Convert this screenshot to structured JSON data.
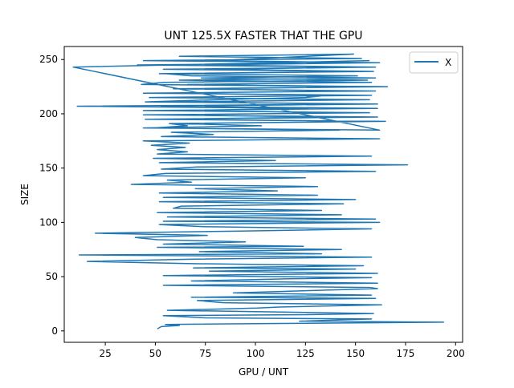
{
  "chart_data": {
    "type": "line",
    "title": "UNT 125.5X FASTER THAT THE GPU",
    "xlabel": "GPU / UNT",
    "ylabel": "SIZE",
    "xlim": [
      4.5,
      203.5
    ],
    "ylim": [
      -10.5,
      262
    ],
    "xticks": [
      25,
      50,
      75,
      100,
      125,
      150,
      175,
      200
    ],
    "yticks": [
      0,
      50,
      100,
      150,
      200,
      250
    ],
    "xtick_labels": [
      "25",
      "50",
      "75",
      "100",
      "125",
      "150",
      "175",
      "200"
    ],
    "ytick_labels": [
      "0",
      "50",
      "100",
      "150",
      "200",
      "250"
    ],
    "grid": false,
    "legend": {
      "position": "top-right",
      "entries": [
        "X"
      ]
    },
    "series": [
      {
        "name": "X",
        "color": "#1f77b4",
        "x": [
          51,
          53,
          62,
          55,
          194,
          122,
          158,
          75,
          54,
          126,
          159,
          56,
          101,
          112,
          163,
          84,
          71,
          160,
          68,
          158,
          89,
          124,
          161,
          157,
          54,
          161,
          68,
          117,
          158,
          54,
          161,
          77,
          150,
          69,
          154,
          66,
          16,
          67,
          158,
          12,
          133,
          72,
          143,
          51,
          124,
          54,
          95,
          51,
          40,
          76,
          20,
          93,
          158,
          74,
          52,
          162,
          54,
          160,
          56,
          143,
          51,
          133,
          59,
          63,
          144,
          52,
          150,
          54,
          131,
          52,
          111,
          70,
          131,
          38,
          68,
          56,
          125,
          44,
          55,
          160,
          53,
          71,
          176,
          52,
          110,
          49,
          158,
          51,
          66,
          51,
          65,
          48,
          67,
          44,
          162,
          53,
          79,
          58,
          142,
          49,
          66,
          57,
          165,
          52,
          138,
          54,
          148,
          62,
          126,
          11,
          159,
          45,
          80,
          125,
          137,
          52,
          150,
          70,
          166,
          43,
          54,
          156,
          73,
          151,
          52,
          153,
          54,
          160,
          70,
          160,
          44,
          153,
          62,
          149,
          79,
          162,
          41,
          158,
          79,
          159,
          55,
          68,
          160,
          62,
          158,
          66,
          160,
          59,
          160,
          44,
          158,
          47,
          157,
          57,
          161,
          53,
          161,
          44,
          157,
          44,
          161,
          45,
          161,
          60,
          103,
          44,
          162,
          9,
          157
        ],
        "y": [
          2,
          4,
          5,
          6,
          8,
          9,
          11,
          12,
          14,
          15,
          16,
          19,
          21,
          22,
          24,
          26,
          28,
          30,
          31,
          33,
          35,
          37,
          39,
          40,
          42,
          44,
          46,
          48,
          49,
          51,
          53,
          55,
          57,
          58,
          60,
          62,
          64,
          66,
          68,
          70,
          71,
          73,
          75,
          77,
          78,
          80,
          82,
          84,
          86,
          88,
          90,
          92,
          94,
          96,
          98,
          100,
          101,
          103,
          105,
          107,
          109,
          111,
          113,
          115,
          117,
          119,
          121,
          123,
          125,
          127,
          129,
          131,
          133,
          135,
          137,
          139,
          141,
          143,
          145,
          147,
          149,
          151,
          153,
          155,
          157,
          159,
          161,
          163,
          165,
          167,
          169,
          171,
          173,
          175,
          177,
          179,
          181,
          183,
          185,
          187,
          189,
          191,
          193,
          195,
          197,
          199,
          201,
          203,
          205,
          207,
          209,
          211,
          213,
          215,
          217,
          219,
          221,
          223,
          225,
          227,
          229,
          231,
          233,
          235,
          237,
          239,
          241,
          243,
          245,
          247,
          249,
          251,
          253,
          255,
          249,
          247,
          245,
          243,
          241,
          239,
          237,
          235,
          233,
          231,
          229,
          227,
          225,
          223,
          221,
          219,
          217,
          215,
          213,
          211,
          209,
          207,
          205,
          203,
          201,
          199,
          197,
          195,
          193,
          191,
          189,
          187,
          185,
          243,
          249
        ]
      }
    ]
  }
}
